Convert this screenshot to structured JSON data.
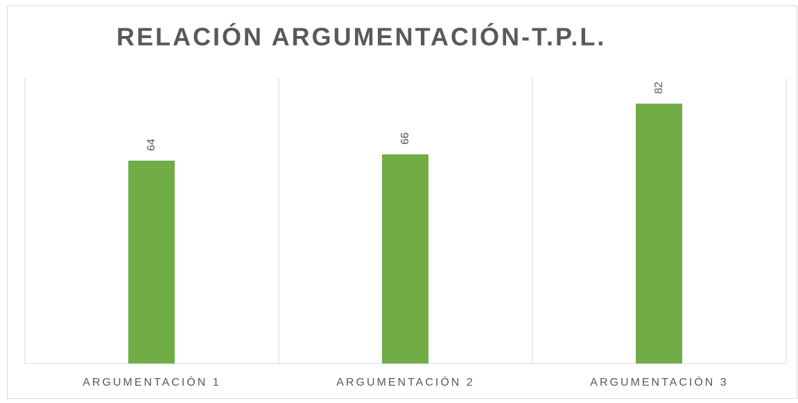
{
  "chart_data": {
    "type": "bar",
    "title": "RELACIÓN ARGUMENTACIÓN-T.P.L.",
    "categories": [
      "ARGUMENTACIÓN 1",
      "ARGUMENTACIÓN 2",
      "ARGUMENTACIÓN 3"
    ],
    "values": [
      64,
      66,
      82
    ],
    "color": "#70ad47",
    "ylim": [
      0,
      90
    ]
  }
}
